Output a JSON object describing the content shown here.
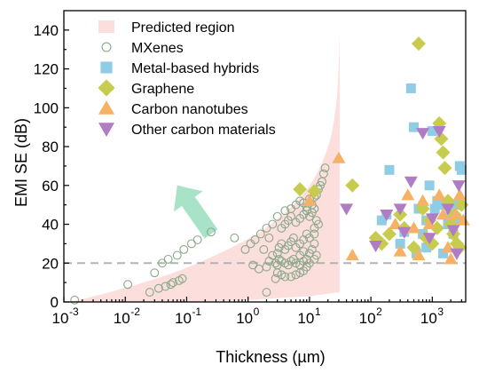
{
  "chart_data": {
    "type": "scatter",
    "title": "",
    "xlabel": "Thickness (µm)",
    "ylabel": "EMI SE (dB)",
    "x_scale": "log",
    "xlim": [
      0.001,
      3500
    ],
    "ylim": [
      0,
      150
    ],
    "x_ticks": [
      {
        "value": 0.001,
        "base": "10",
        "exp": "-3"
      },
      {
        "value": 0.01,
        "base": "10",
        "exp": "-2"
      },
      {
        "value": 0.1,
        "base": "10",
        "exp": "-1"
      },
      {
        "value": 1,
        "base": "10",
        "exp": "0"
      },
      {
        "value": 10,
        "base": "10",
        "exp": "1"
      },
      {
        "value": 100,
        "base": "10",
        "exp": "2"
      },
      {
        "value": 1000,
        "base": "10",
        "exp": "3"
      }
    ],
    "y_ticks": [
      0,
      20,
      40,
      60,
      80,
      100,
      120,
      140
    ],
    "grid": false,
    "legend_position": "top-left",
    "reference_line": {
      "y": 20,
      "style": "dashed",
      "color": "#b3b3b3"
    },
    "predicted_region": {
      "name": "Predicted region",
      "color": "#fcd9d7",
      "upper": [
        [
          0.0013,
          0
        ],
        [
          0.01,
          7
        ],
        [
          0.1,
          17
        ],
        [
          1,
          32
        ],
        [
          3,
          42
        ],
        [
          10,
          58
        ],
        [
          20,
          78
        ],
        [
          27,
          97
        ],
        [
          30,
          120
        ],
        [
          31,
          140
        ]
      ],
      "lower": [
        [
          31,
          5
        ],
        [
          10,
          3
        ],
        [
          1,
          1
        ],
        [
          0.1,
          0
        ],
        [
          0.0013,
          0
        ]
      ]
    },
    "arrow": {
      "color": "#a8e3c8",
      "from": [
        0.25,
        35
      ],
      "to": [
        0.07,
        60
      ]
    },
    "series": [
      {
        "name": "Predicted region",
        "marker": "rect",
        "color": "#fcd9d7",
        "points": []
      },
      {
        "name": "MXenes",
        "marker": "circle-open",
        "color": "#8aa88a",
        "points": [
          [
            0.0015,
            1
          ],
          [
            0.011,
            9
          ],
          [
            0.025,
            5
          ],
          [
            0.035,
            7
          ],
          [
            0.045,
            8
          ],
          [
            0.055,
            9
          ],
          [
            0.06,
            10
          ],
          [
            0.075,
            11
          ],
          [
            0.085,
            12
          ],
          [
            0.03,
            15
          ],
          [
            0.04,
            20
          ],
          [
            0.05,
            22
          ],
          [
            0.07,
            24
          ],
          [
            0.09,
            27
          ],
          [
            0.12,
            30
          ],
          [
            0.15,
            32
          ],
          [
            0.25,
            36
          ],
          [
            0.6,
            33
          ],
          [
            0.9,
            27
          ],
          [
            1.1,
            30
          ],
          [
            1.3,
            32
          ],
          [
            1.6,
            35
          ],
          [
            2,
            38
          ],
          [
            2.5,
            40
          ],
          [
            1.2,
            19
          ],
          [
            1.5,
            17
          ],
          [
            2,
            18
          ],
          [
            2.2,
            21
          ],
          [
            2.8,
            20
          ],
          [
            3,
            19
          ],
          [
            3.2,
            22
          ],
          [
            3.5,
            21
          ],
          [
            4,
            20
          ],
          [
            4.5,
            19
          ],
          [
            5,
            21
          ],
          [
            5.5,
            22
          ],
          [
            6,
            20
          ],
          [
            7,
            19
          ],
          [
            8,
            21
          ],
          [
            9,
            18
          ],
          [
            2.8,
            12
          ],
          [
            3,
            15
          ],
          [
            3.5,
            14
          ],
          [
            4,
            13
          ],
          [
            5,
            13
          ],
          [
            6,
            14
          ],
          [
            7,
            15
          ],
          [
            8,
            16
          ],
          [
            3,
            25
          ],
          [
            3.2,
            28
          ],
          [
            3.5,
            30
          ],
          [
            4,
            27
          ],
          [
            4.5,
            29
          ],
          [
            5,
            31
          ],
          [
            5.5,
            33
          ],
          [
            6,
            28
          ],
          [
            7,
            30
          ],
          [
            8,
            32
          ],
          [
            9,
            35
          ],
          [
            10,
            33
          ],
          [
            3.5,
            38
          ],
          [
            4,
            40
          ],
          [
            4.5,
            42
          ],
          [
            5,
            44
          ],
          [
            6,
            41
          ],
          [
            7,
            43
          ],
          [
            8,
            45
          ],
          [
            9,
            47
          ],
          [
            10,
            44
          ],
          [
            11,
            46
          ],
          [
            12,
            48
          ],
          [
            13,
            42
          ],
          [
            14,
            40
          ],
          [
            12,
            35
          ],
          [
            12,
            30
          ],
          [
            3,
            44
          ],
          [
            4,
            47
          ],
          [
            5,
            48
          ],
          [
            6,
            50
          ],
          [
            7,
            52
          ],
          [
            8,
            51
          ],
          [
            9,
            49
          ],
          [
            10,
            53
          ],
          [
            11,
            50
          ],
          [
            12,
            54
          ],
          [
            13,
            55
          ],
          [
            14,
            58
          ],
          [
            15,
            60
          ],
          [
            16,
            62
          ],
          [
            17,
            66
          ],
          [
            18,
            69
          ],
          [
            2.5,
            24
          ],
          [
            1.8,
            27
          ],
          [
            2.2,
            33
          ],
          [
            7,
            24
          ],
          [
            8,
            26
          ],
          [
            10,
            25
          ],
          [
            11,
            27
          ],
          [
            9,
            22
          ],
          [
            10,
            20
          ],
          [
            12,
            22
          ],
          [
            2,
            5
          ],
          [
            13,
            24
          ],
          [
            12,
            38
          ]
        ]
      },
      {
        "name": "Metal-based hybrids",
        "marker": "square",
        "color": "#8fcde6",
        "points": [
          [
            150,
            42
          ],
          [
            200,
            68
          ],
          [
            180,
            45
          ],
          [
            300,
            30
          ],
          [
            350,
            36
          ],
          [
            450,
            110
          ],
          [
            500,
            90
          ],
          [
            600,
            48
          ],
          [
            550,
            25
          ],
          [
            700,
            35
          ],
          [
            800,
            42
          ],
          [
            900,
            30
          ],
          [
            1000,
            88
          ],
          [
            1100,
            48
          ],
          [
            1300,
            50
          ],
          [
            1500,
            25
          ],
          [
            1800,
            40
          ],
          [
            2000,
            45
          ],
          [
            2200,
            35
          ],
          [
            2500,
            50
          ],
          [
            2800,
            70
          ],
          [
            3000,
            68
          ],
          [
            1200,
            52
          ],
          [
            800,
            28
          ],
          [
            900,
            60
          ],
          [
            2600,
            42
          ]
        ]
      },
      {
        "name": "Graphene",
        "marker": "diamond",
        "color": "#c8cc4e",
        "points": [
          [
            7,
            58
          ],
          [
            12,
            57
          ],
          [
            50,
            60
          ],
          [
            120,
            33
          ],
          [
            150,
            30
          ],
          [
            200,
            35
          ],
          [
            300,
            45
          ],
          [
            350,
            38
          ],
          [
            500,
            28
          ],
          [
            600,
            133
          ],
          [
            700,
            48
          ],
          [
            800,
            33
          ],
          [
            1000,
            30
          ],
          [
            1300,
            92
          ],
          [
            1400,
            84
          ],
          [
            1500,
            77
          ],
          [
            1600,
            69
          ],
          [
            1800,
            52
          ],
          [
            2000,
            40
          ],
          [
            2200,
            35
          ],
          [
            2500,
            30
          ],
          [
            2800,
            28
          ],
          [
            3000,
            50
          ],
          [
            1200,
            38
          ],
          [
            900,
            42
          ],
          [
            2300,
            45
          ]
        ]
      },
      {
        "name": "Carbon nanotubes",
        "marker": "triangle-up",
        "color": "#f5b266",
        "points": [
          [
            10,
            52
          ],
          [
            30,
            74
          ],
          [
            50,
            24
          ],
          [
            250,
            40
          ],
          [
            300,
            26
          ],
          [
            400,
            55
          ],
          [
            500,
            38
          ],
          [
            600,
            24
          ],
          [
            700,
            52
          ],
          [
            900,
            40
          ],
          [
            1300,
            55
          ],
          [
            1500,
            45
          ],
          [
            1800,
            28
          ],
          [
            2000,
            22
          ],
          [
            2400,
            45
          ],
          [
            2800,
            55
          ],
          [
            3200,
            42
          ]
        ]
      },
      {
        "name": "Other carbon materials",
        "marker": "triangle-down",
        "color": "#b07cc4",
        "points": [
          [
            40,
            48
          ],
          [
            120,
            29
          ],
          [
            180,
            45
          ],
          [
            300,
            48
          ],
          [
            350,
            36
          ],
          [
            450,
            62
          ],
          [
            700,
            87
          ],
          [
            900,
            33
          ],
          [
            1000,
            43
          ],
          [
            1300,
            88
          ],
          [
            1800,
            48
          ],
          [
            2200,
            37
          ],
          [
            2500,
            25
          ],
          [
            2700,
            60
          ]
        ]
      }
    ]
  }
}
